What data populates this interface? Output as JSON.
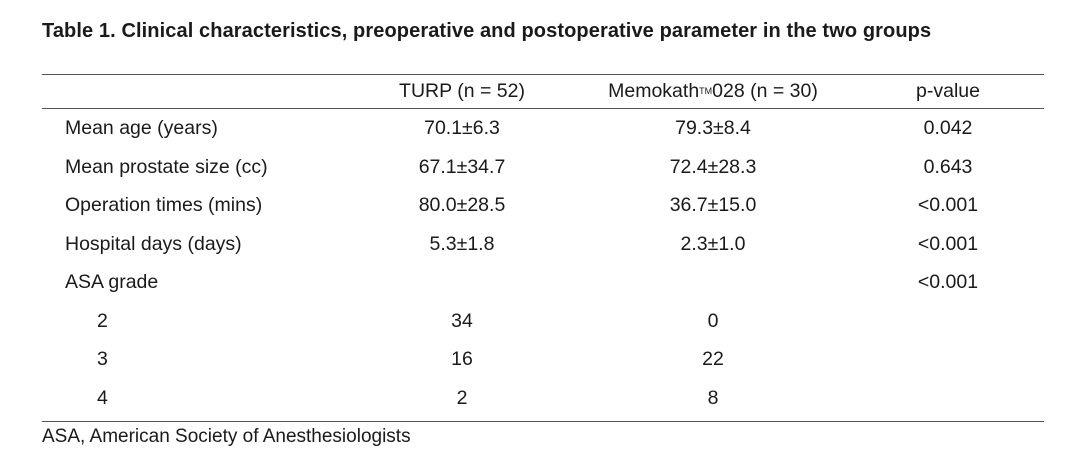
{
  "table": {
    "caption": "Table 1. Clinical characteristics, preoperative and postoperative parameter in the two groups",
    "headers": {
      "label": "",
      "turp": "TURP (n = 52)",
      "memo_prefix": "Memokath",
      "memo_tm": "TM",
      "memo_suffix": "028 (n = 30)",
      "pvalue": "p-value"
    },
    "rows": [
      {
        "label": "Mean age (years)",
        "turp": "70.1±6.3",
        "memo": "79.3±8.4",
        "p": "0.042"
      },
      {
        "label": "Mean prostate size (cc)",
        "turp": "67.1±34.7",
        "memo": "72.4±28.3",
        "p": "0.643"
      },
      {
        "label": "Operation times (mins)",
        "turp": "80.0±28.5",
        "memo": "36.7±15.0",
        "p": "<0.001"
      },
      {
        "label": "Hospital days (days)",
        "turp": "5.3±1.8",
        "memo": "2.3±1.0",
        "p": "<0.001"
      },
      {
        "label": "ASA grade",
        "turp": "",
        "memo": "",
        "p": "<0.001"
      },
      {
        "label": "2",
        "turp": "34",
        "memo": "0",
        "p": ""
      },
      {
        "label": "3",
        "turp": "16",
        "memo": "22",
        "p": ""
      },
      {
        "label": "4",
        "turp": "2",
        "memo": "8",
        "p": ""
      }
    ],
    "footnote": "ASA, American Society of Anesthesiologists"
  }
}
